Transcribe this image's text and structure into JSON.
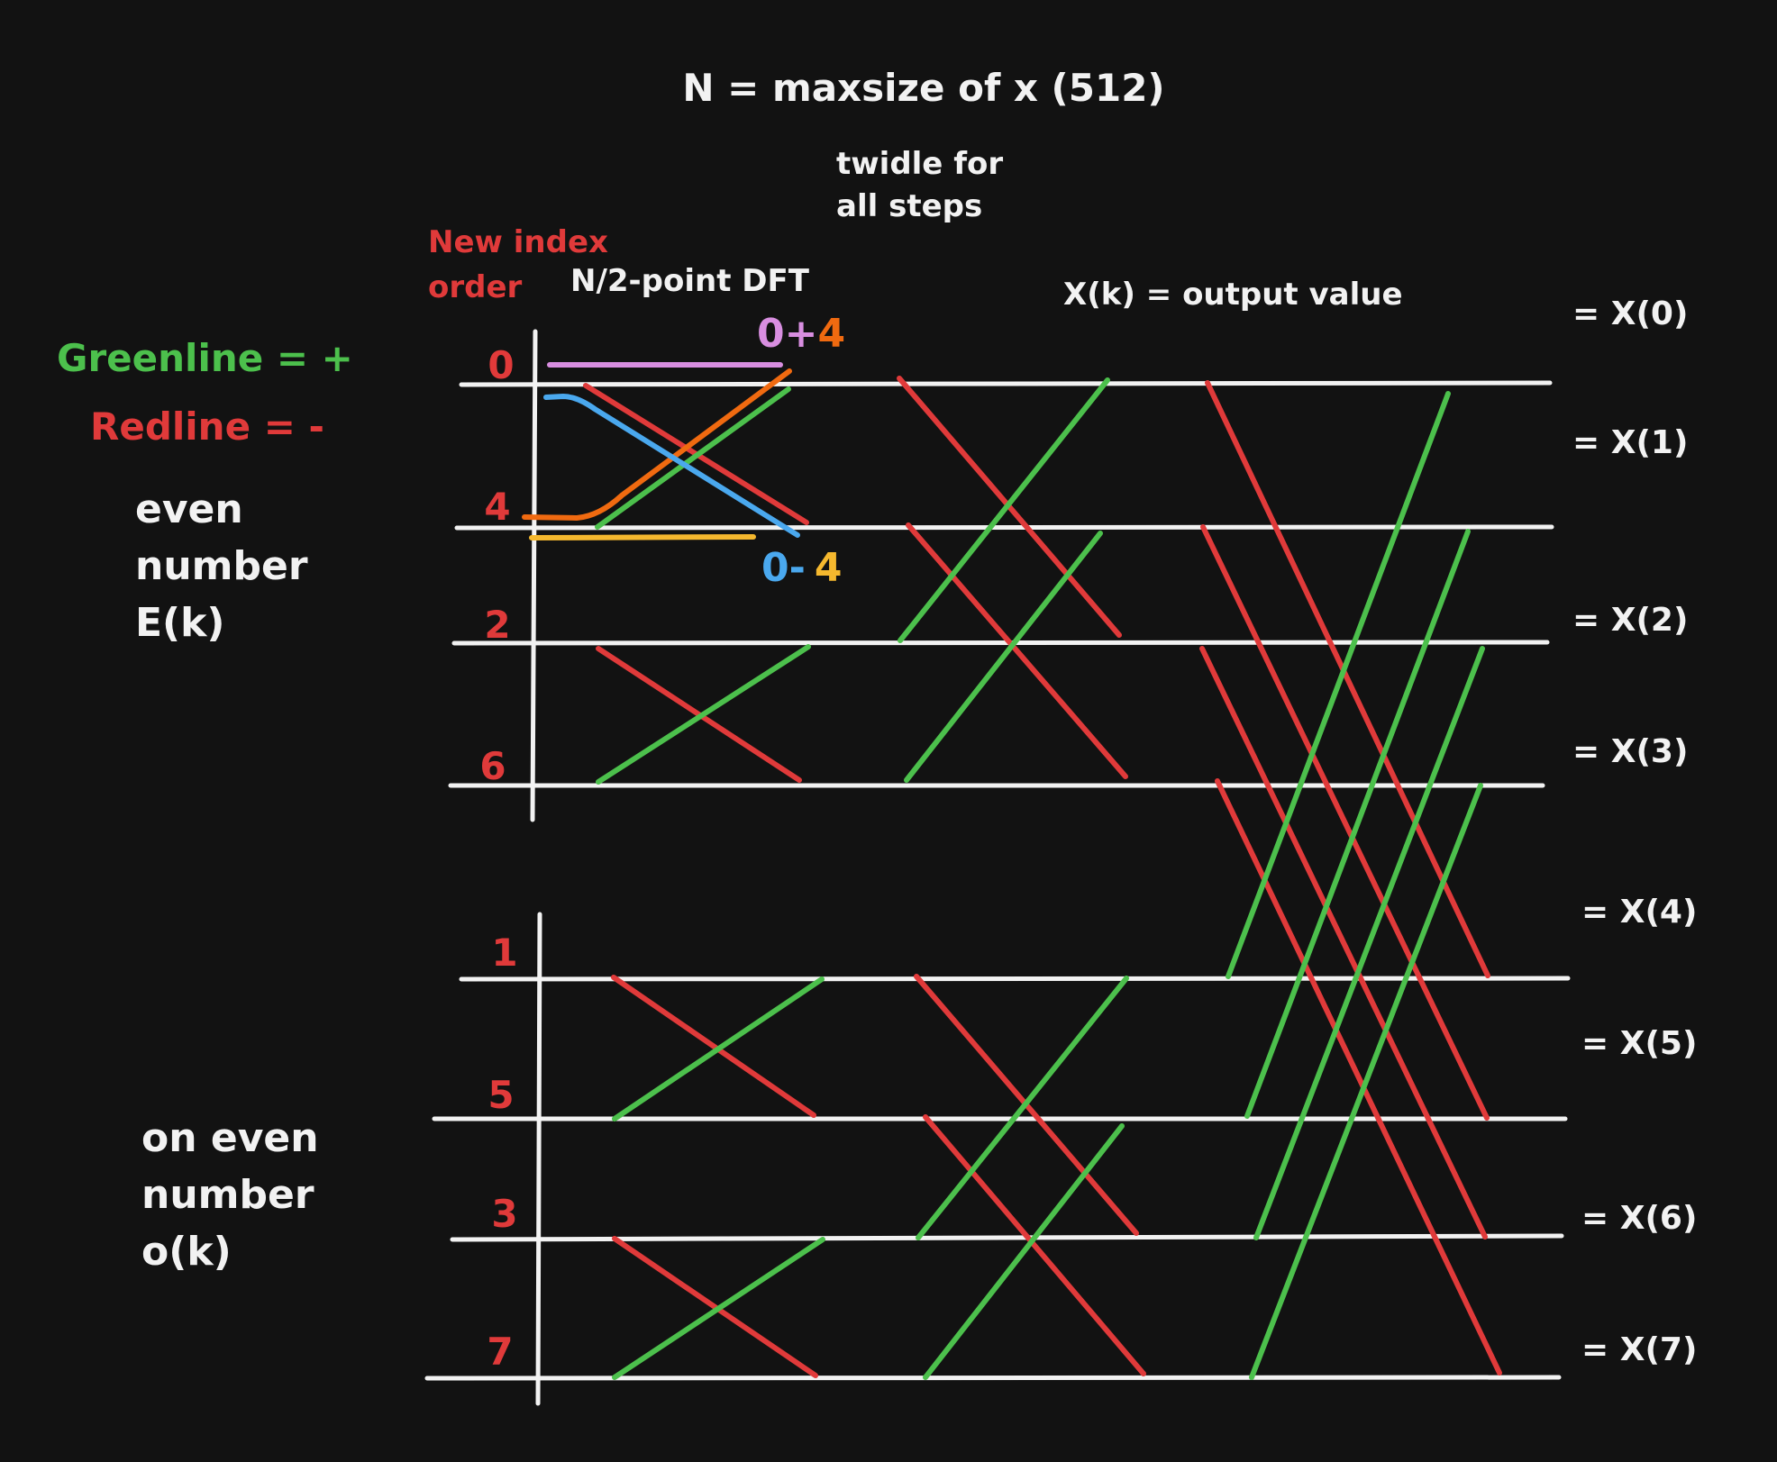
{
  "title": "N = maxsize of x (512)",
  "twiddle_note": [
    "twidle for",
    "all steps"
  ],
  "new_index_label": [
    "New index",
    "order"
  ],
  "half_dft_label": "N/2-point DFT",
  "output_label": "X(k) = output value",
  "legend": {
    "green": "Greenline = +",
    "red": "Redline = -"
  },
  "even_label": [
    "even",
    "number",
    "E(k)"
  ],
  "odd_label": [
    "on even",
    "number",
    "o(k)"
  ],
  "annotation_sum": {
    "left": "0+",
    "right": "4"
  },
  "annotation_diff": {
    "left": "0-",
    "right": "4"
  },
  "input_indices": [
    "0",
    "4",
    "2",
    "6",
    "1",
    "5",
    "3",
    "7"
  ],
  "outputs": [
    "= X(0)",
    "= X(1)",
    "= X(2)",
    "= X(3)",
    "= X(4)",
    "= X(5)",
    "= X(6)",
    "= X(7)"
  ],
  "colors": {
    "background": "#121212",
    "white": "#f2f2f2",
    "red": "#e03a3a",
    "green": "#4cc04c",
    "violet": "#d88ee0",
    "orange": "#f06a10",
    "blue": "#4aa8ee",
    "yellow": "#f5b82e"
  }
}
